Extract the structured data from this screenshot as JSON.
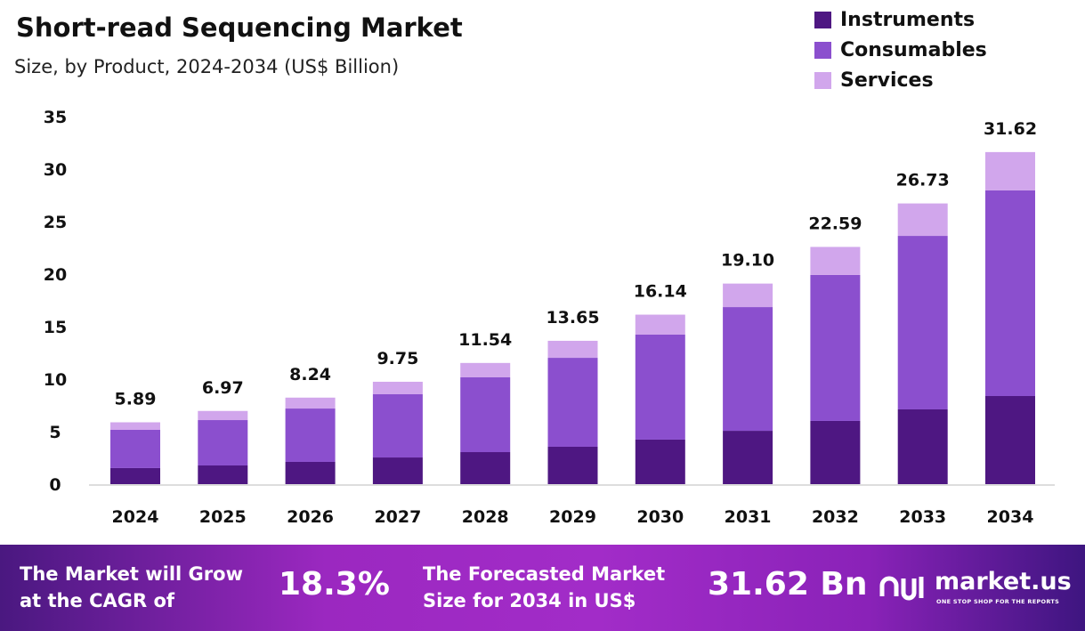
{
  "chart_data": {
    "type": "bar",
    "stacked": true,
    "title": "Short-read Sequencing Market",
    "subtitle": "Size, by Product, 2024-2034 (US$ Billion)",
    "categories": [
      "2024",
      "2025",
      "2026",
      "2027",
      "2028",
      "2029",
      "2030",
      "2031",
      "2032",
      "2033",
      "2034"
    ],
    "series": [
      {
        "name": "Instruments",
        "color": "#4e1782",
        "values": [
          1.53,
          1.78,
          2.12,
          2.54,
          3.05,
          3.56,
          4.24,
          5.08,
          6.02,
          7.12,
          8.39
        ]
      },
      {
        "name": "Consumables",
        "color": "#8b4fce",
        "values": [
          3.64,
          4.32,
          5.08,
          6.02,
          7.12,
          8.47,
          10.0,
          11.78,
          13.9,
          16.52,
          19.58
        ]
      },
      {
        "name": "Services",
        "color": "#d1a6ec",
        "values": [
          0.72,
          0.87,
          1.04,
          1.19,
          1.37,
          1.62,
          1.9,
          2.24,
          2.67,
          3.09,
          3.65
        ]
      }
    ],
    "totals": [
      "5.89",
      "6.97",
      "8.24",
      "9.75",
      "11.54",
      "13.65",
      "16.14",
      "19.10",
      "22.59",
      "26.73",
      "31.62"
    ],
    "ylim": [
      0,
      35
    ],
    "yticks": [
      "0",
      "5",
      "10",
      "15",
      "20",
      "25",
      "30",
      "35"
    ],
    "grid": false,
    "legend": "top-right"
  },
  "banner": {
    "cagr_text_1": "The Market will Grow",
    "cagr_text_2": "at the CAGR of",
    "cagr_value": "18.3%",
    "forecast_text_1": "The Forecasted Market",
    "forecast_text_2": "Size for 2034 in US$",
    "forecast_value": "31.62 Bn",
    "logo_text": "market.us",
    "logo_tagline": "ONE STOP SHOP FOR THE REPORTS"
  }
}
